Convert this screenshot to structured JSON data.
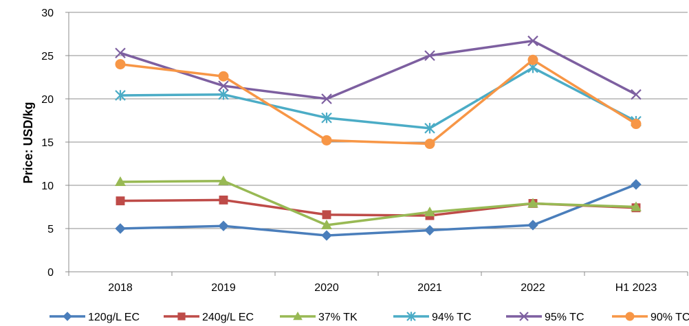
{
  "chart_data": {
    "type": "line",
    "title": "",
    "xlabel": "",
    "ylabel": "Price: USD/kg",
    "categories": [
      "2018",
      "2019",
      "2020",
      "2021",
      "2022",
      "H1 2023"
    ],
    "ylim": [
      0,
      30
    ],
    "yticks": [
      0,
      5,
      10,
      15,
      20,
      25,
      30
    ],
    "grid": "horizontal",
    "legend_position": "bottom",
    "series": [
      {
        "name": "120g/L EC",
        "color": "#4a7ebb",
        "marker": "diamond",
        "values": [
          5.0,
          5.3,
          4.2,
          4.8,
          5.4,
          10.1
        ]
      },
      {
        "name": "240g/L EC",
        "color": "#be4b48",
        "marker": "square",
        "values": [
          8.2,
          8.3,
          6.6,
          6.5,
          7.9,
          7.4
        ]
      },
      {
        "name": "37% TK",
        "color": "#98b954",
        "marker": "triangle",
        "values": [
          10.4,
          10.5,
          5.4,
          6.9,
          7.9,
          7.5
        ]
      },
      {
        "name": "94% TC",
        "color": "#4bacc6",
        "marker": "asterisk",
        "values": [
          20.4,
          20.5,
          17.8,
          16.6,
          23.6,
          17.4
        ]
      },
      {
        "name": "95% TC",
        "color": "#7d5fa0",
        "marker": "x",
        "values": [
          25.3,
          21.5,
          20.0,
          25.0,
          26.7,
          20.5
        ]
      },
      {
        "name": "90% TC",
        "color": "#f79646",
        "marker": "circle",
        "values": [
          24.0,
          22.6,
          15.2,
          14.8,
          24.5,
          17.1
        ]
      }
    ]
  }
}
